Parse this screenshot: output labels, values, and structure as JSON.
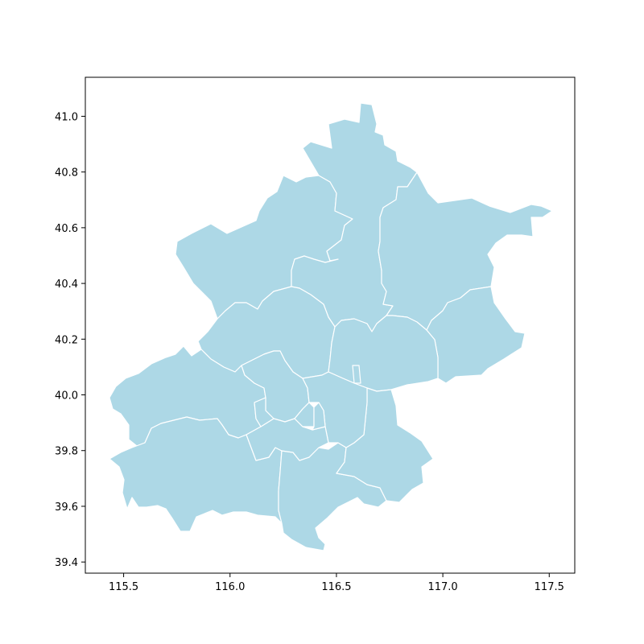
{
  "map": {
    "fill_color": "#add8e6",
    "border_color": "#ffffff",
    "x_ticks": [
      "115.5",
      "116.0",
      "116.5",
      "117.0",
      "117.5"
    ],
    "y_ticks": [
      "41.0",
      "40.8",
      "40.6",
      "40.4",
      "40.2",
      "40.0",
      "39.8",
      "39.6",
      "39.4"
    ],
    "xlim": [
      115.32,
      117.62
    ],
    "ylim": [
      39.36,
      41.14
    ]
  }
}
